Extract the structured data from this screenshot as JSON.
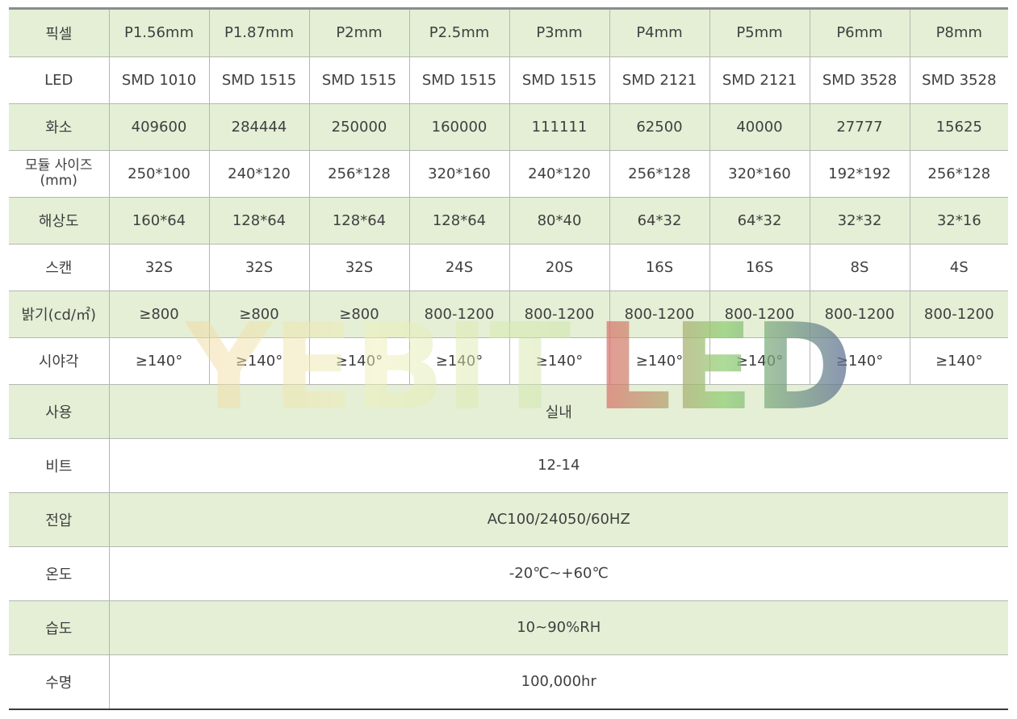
{
  "table": {
    "columns": [
      "픽셀",
      "P1.56mm",
      "P1.87mm",
      "P2mm",
      "P2.5mm",
      "P3mm",
      "P4mm",
      "P5mm",
      "P6mm",
      "P8mm"
    ],
    "spec_rows": [
      {
        "label": "LED",
        "values": [
          "SMD 1010",
          "SMD 1515",
          "SMD 1515",
          "SMD 1515",
          "SMD 1515",
          "SMD 2121",
          "SMD 2121",
          "SMD 3528",
          "SMD 3528"
        ]
      },
      {
        "label": "화소",
        "values": [
          "409600",
          "284444",
          "250000",
          "160000",
          "111111",
          "62500",
          "40000",
          "27777",
          "15625"
        ]
      },
      {
        "label_line1": "모듈 사이즈",
        "label_line2": "(mm)",
        "values": [
          "250*100",
          "240*120",
          "256*128",
          "320*160",
          "240*120",
          "256*128",
          "320*160",
          "192*192",
          "256*128"
        ]
      },
      {
        "label": "해상도",
        "values": [
          "160*64",
          "128*64",
          "128*64",
          "128*64",
          "80*40",
          "64*32",
          "64*32",
          "32*32",
          "32*16"
        ]
      },
      {
        "label": "스캔",
        "values": [
          "32S",
          "32S",
          "32S",
          "24S",
          "20S",
          "16S",
          "16S",
          "8S",
          "4S"
        ]
      },
      {
        "label": "밝기(cd/㎡)",
        "values": [
          "≥800",
          "≥800",
          "≥800",
          "800-1200",
          "800-1200",
          "800-1200",
          "800-1200",
          "800-1200",
          "800-1200"
        ]
      },
      {
        "label": "시야각",
        "values": [
          "≥140°",
          "≥140°",
          "≥140°",
          "≥140°",
          "≥140°",
          "≥140°",
          "≥140°",
          "≥140°",
          "≥140°"
        ]
      }
    ],
    "common_rows": [
      {
        "label": "사용",
        "value": "실내"
      },
      {
        "label": "비트",
        "value": "12-14"
      },
      {
        "label": "전압",
        "value": "AC100/24050/60HZ"
      },
      {
        "label": "온도",
        "value": "-20℃~+60℃"
      },
      {
        "label": "습도",
        "value": "10~90%RH"
      },
      {
        "label": "수명",
        "value": "100,000hr"
      }
    ]
  },
  "watermark": {
    "part1": "YEBIT",
    "part2": "LED"
  },
  "colors": {
    "green_row": "#e4efd6",
    "white_row": "#ffffff",
    "text": "#3f3f3f",
    "border": "#b4b8b1"
  }
}
